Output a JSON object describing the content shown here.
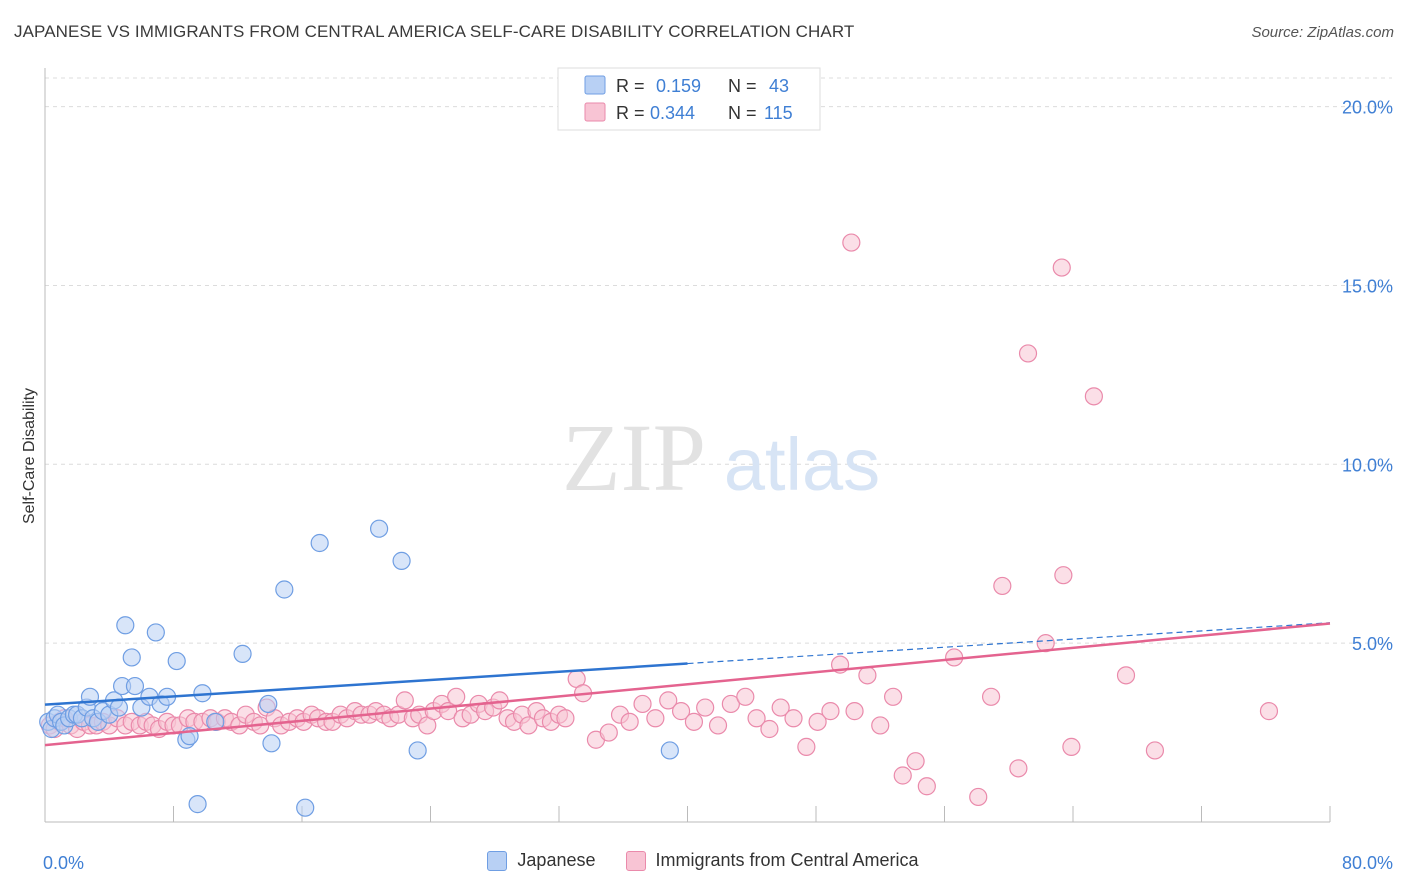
{
  "header": {
    "title": "JAPANESE VS IMMIGRANTS FROM CENTRAL AMERICA SELF-CARE DISABILITY CORRELATION CHART",
    "source": "Source: ZipAtlas.com"
  },
  "watermark": {
    "zip": "ZIP",
    "atlas": "atlas"
  },
  "colors": {
    "japanese_fill": "#b8d0f4",
    "japanese_stroke": "#6f9ee3",
    "japanese_line": "#2e74d0",
    "central_fill": "#f8c4d4",
    "central_stroke": "#ea8aab",
    "central_line": "#e4638f",
    "axis_text": "#3f7fd4"
  },
  "chart_data": {
    "type": "scatter",
    "title": "JAPANESE VS IMMIGRANTS FROM CENTRAL AMERICA SELF-CARE DISABILITY CORRELATION CHART",
    "xlabel": "",
    "ylabel": "Self-Care Disability",
    "xlim": [
      0,
      80
    ],
    "ylim": [
      0,
      20.8
    ],
    "x_tick_labels": [
      "0.0%",
      "80.0%"
    ],
    "y_ticks": [
      5,
      10,
      15,
      20
    ],
    "y_tick_labels": [
      "5.0%",
      "10.0%",
      "15.0%",
      "20.0%"
    ],
    "grid": true,
    "legend_position": "top-center",
    "series": [
      {
        "name": "Japanese",
        "R": "0.159",
        "N": "43",
        "trend": {
          "x0": 0,
          "y0": 3.28,
          "x1": 40,
          "y1": 4.43,
          "dash_to": 80,
          "dash_y": 5.57
        },
        "points": [
          [
            0.2,
            2.8
          ],
          [
            0.4,
            2.6
          ],
          [
            0.6,
            2.9
          ],
          [
            0.8,
            3.0
          ],
          [
            1.0,
            2.8
          ],
          [
            1.2,
            2.7
          ],
          [
            1.5,
            2.9
          ],
          [
            1.8,
            3.0
          ],
          [
            2.0,
            3.0
          ],
          [
            2.3,
            2.9
          ],
          [
            2.6,
            3.2
          ],
          [
            2.8,
            3.5
          ],
          [
            3.0,
            2.9
          ],
          [
            3.3,
            2.8
          ],
          [
            3.6,
            3.1
          ],
          [
            4.0,
            3.0
          ],
          [
            4.3,
            3.4
          ],
          [
            4.6,
            3.2
          ],
          [
            4.8,
            3.8
          ],
          [
            5.0,
            5.5
          ],
          [
            5.4,
            4.6
          ],
          [
            5.6,
            3.8
          ],
          [
            6.0,
            3.2
          ],
          [
            6.5,
            3.5
          ],
          [
            6.9,
            5.3
          ],
          [
            7.2,
            3.3
          ],
          [
            7.6,
            3.5
          ],
          [
            8.2,
            4.5
          ],
          [
            8.8,
            2.3
          ],
          [
            9.0,
            2.4
          ],
          [
            9.5,
            0.5
          ],
          [
            9.8,
            3.6
          ],
          [
            10.6,
            2.8
          ],
          [
            12.3,
            4.7
          ],
          [
            13.9,
            3.3
          ],
          [
            14.1,
            2.2
          ],
          [
            14.9,
            6.5
          ],
          [
            16.2,
            0.4
          ],
          [
            17.1,
            7.8
          ],
          [
            20.8,
            8.2
          ],
          [
            22.2,
            7.3
          ],
          [
            23.2,
            2.0
          ],
          [
            38.9,
            2.0
          ]
        ]
      },
      {
        "name": "Immigrants from Central America",
        "R": "0.344",
        "N": "115",
        "trend": {
          "x0": 0,
          "y0": 2.15,
          "x1": 80,
          "y1": 5.55
        },
        "points": [
          [
            0.3,
            2.7
          ],
          [
            0.6,
            2.6
          ],
          [
            0.9,
            2.8
          ],
          [
            1.2,
            2.9
          ],
          [
            1.6,
            2.7
          ],
          [
            2.0,
            2.6
          ],
          [
            2.4,
            2.8
          ],
          [
            2.8,
            2.7
          ],
          [
            3.2,
            2.7
          ],
          [
            3.6,
            2.8
          ],
          [
            4.0,
            2.7
          ],
          [
            4.5,
            2.9
          ],
          [
            5.0,
            2.7
          ],
          [
            5.4,
            2.8
          ],
          [
            5.9,
            2.7
          ],
          [
            6.3,
            2.8
          ],
          [
            6.7,
            2.7
          ],
          [
            7.1,
            2.6
          ],
          [
            7.6,
            2.8
          ],
          [
            8.0,
            2.7
          ],
          [
            8.4,
            2.7
          ],
          [
            8.9,
            2.9
          ],
          [
            9.3,
            2.8
          ],
          [
            9.8,
            2.8
          ],
          [
            10.3,
            2.9
          ],
          [
            10.7,
            2.8
          ],
          [
            11.2,
            2.9
          ],
          [
            11.6,
            2.8
          ],
          [
            12.1,
            2.7
          ],
          [
            12.5,
            3.0
          ],
          [
            13.0,
            2.8
          ],
          [
            13.4,
            2.7
          ],
          [
            13.8,
            3.2
          ],
          [
            14.3,
            2.9
          ],
          [
            14.7,
            2.7
          ],
          [
            15.2,
            2.8
          ],
          [
            15.7,
            2.9
          ],
          [
            16.1,
            2.8
          ],
          [
            16.6,
            3.0
          ],
          [
            17.0,
            2.9
          ],
          [
            17.5,
            2.8
          ],
          [
            17.9,
            2.8
          ],
          [
            18.4,
            3.0
          ],
          [
            18.8,
            2.9
          ],
          [
            19.3,
            3.1
          ],
          [
            19.7,
            3.0
          ],
          [
            20.2,
            3.0
          ],
          [
            20.6,
            3.1
          ],
          [
            21.1,
            3.0
          ],
          [
            21.5,
            2.9
          ],
          [
            22.0,
            3.0
          ],
          [
            22.4,
            3.4
          ],
          [
            22.9,
            2.9
          ],
          [
            23.3,
            3.0
          ],
          [
            23.8,
            2.7
          ],
          [
            24.2,
            3.1
          ],
          [
            24.7,
            3.3
          ],
          [
            25.1,
            3.1
          ],
          [
            25.6,
            3.5
          ],
          [
            26.0,
            2.9
          ],
          [
            26.5,
            3.0
          ],
          [
            27.0,
            3.3
          ],
          [
            27.4,
            3.1
          ],
          [
            27.9,
            3.2
          ],
          [
            28.3,
            3.4
          ],
          [
            28.8,
            2.9
          ],
          [
            29.2,
            2.8
          ],
          [
            29.7,
            3.0
          ],
          [
            30.1,
            2.7
          ],
          [
            30.6,
            3.1
          ],
          [
            31.0,
            2.9
          ],
          [
            31.5,
            2.8
          ],
          [
            32.0,
            3.0
          ],
          [
            32.4,
            2.9
          ],
          [
            33.1,
            4.0
          ],
          [
            33.5,
            3.6
          ],
          [
            34.3,
            2.3
          ],
          [
            35.1,
            2.5
          ],
          [
            35.8,
            3.0
          ],
          [
            36.4,
            2.8
          ],
          [
            37.2,
            3.3
          ],
          [
            38.0,
            2.9
          ],
          [
            38.8,
            3.4
          ],
          [
            39.6,
            3.1
          ],
          [
            40.4,
            2.8
          ],
          [
            41.1,
            3.2
          ],
          [
            41.9,
            2.7
          ],
          [
            42.7,
            3.3
          ],
          [
            43.6,
            3.5
          ],
          [
            44.3,
            2.9
          ],
          [
            45.1,
            2.6
          ],
          [
            45.8,
            3.2
          ],
          [
            46.6,
            2.9
          ],
          [
            47.4,
            2.1
          ],
          [
            48.1,
            2.8
          ],
          [
            48.9,
            3.1
          ],
          [
            49.5,
            4.4
          ],
          [
            50.4,
            3.1
          ],
          [
            51.2,
            4.1
          ],
          [
            52.0,
            2.7
          ],
          [
            52.8,
            3.5
          ],
          [
            53.4,
            1.3
          ],
          [
            54.2,
            1.7
          ],
          [
            54.9,
            1.0
          ],
          [
            56.6,
            4.6
          ],
          [
            58.1,
            0.7
          ],
          [
            58.9,
            3.5
          ],
          [
            59.6,
            6.6
          ],
          [
            60.6,
            1.5
          ],
          [
            61.2,
            13.1
          ],
          [
            62.3,
            5.0
          ],
          [
            63.4,
            6.9
          ],
          [
            63.9,
            2.1
          ],
          [
            65.3,
            11.9
          ],
          [
            67.3,
            4.1
          ],
          [
            69.1,
            2.0
          ],
          [
            76.2,
            3.1
          ],
          [
            50.2,
            16.2
          ],
          [
            63.3,
            15.5
          ]
        ]
      }
    ]
  },
  "legend_bottom": {
    "japanese_label": "Japanese",
    "central_label": "Immigrants from Central America"
  }
}
